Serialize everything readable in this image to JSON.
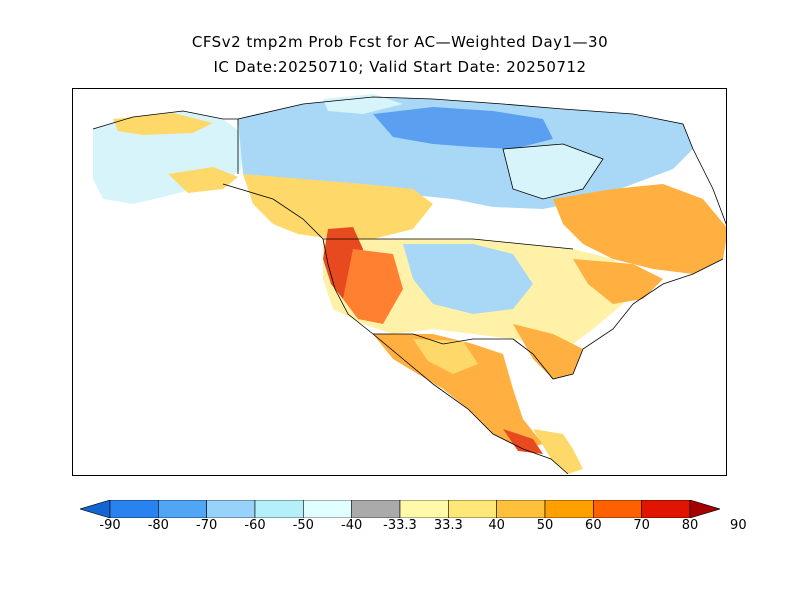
{
  "title_line1": "CFSv2 tmp2m Prob Fcst for AC—Weighted Day1—30",
  "title_line2": "IC Date:20250710; Valid Start Date: 20250712",
  "colorbar": {
    "colors": [
      "#1464d2",
      "#2882f0",
      "#50a5f5",
      "#96d2fa",
      "#b4f0fa",
      "#e1ffff",
      "#aaaaaa",
      "#fffaaa",
      "#ffe878",
      "#ffc03c",
      "#ffa000",
      "#ff6000",
      "#e11400",
      "#a50000"
    ],
    "labels": [
      "-90",
      "-80",
      "-70",
      "-60",
      "-50",
      "-40",
      "-33.3",
      "33.3",
      "40",
      "50",
      "60",
      "70",
      "80",
      "90"
    ]
  },
  "legend_palette": {
    "deep_blue": "#5a9ff0",
    "light_blue": "#a8d8f5",
    "pale_cyan": "#d6f4fa",
    "pale_yellow": "#fff2a8",
    "yellow": "#ffd86a",
    "orange": "#ffb040",
    "dark_orange": "#ff8030",
    "red": "#e84a20"
  }
}
